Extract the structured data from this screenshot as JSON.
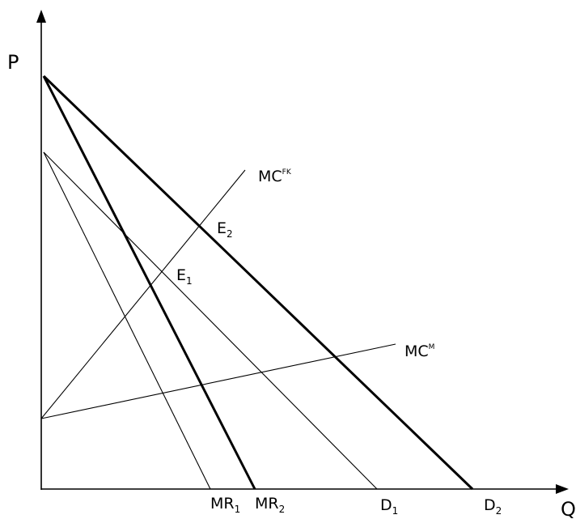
{
  "axes": {
    "y_label": "P",
    "x_label": "Q"
  },
  "curves": {
    "mc_fk": {
      "main": "MC",
      "sup": "FK"
    },
    "mc_m": {
      "main": "MC",
      "sup": "M"
    },
    "mr1": {
      "main": "MR",
      "sub": "1"
    },
    "mr2": {
      "main": "MR",
      "sub": "2"
    },
    "d1": {
      "main": "D",
      "sub": "1"
    },
    "d2": {
      "main": "D",
      "sub": "2"
    }
  },
  "points": {
    "e1": {
      "main": "E",
      "sub": "1"
    },
    "e2": {
      "main": "E",
      "sub": "2"
    }
  }
}
